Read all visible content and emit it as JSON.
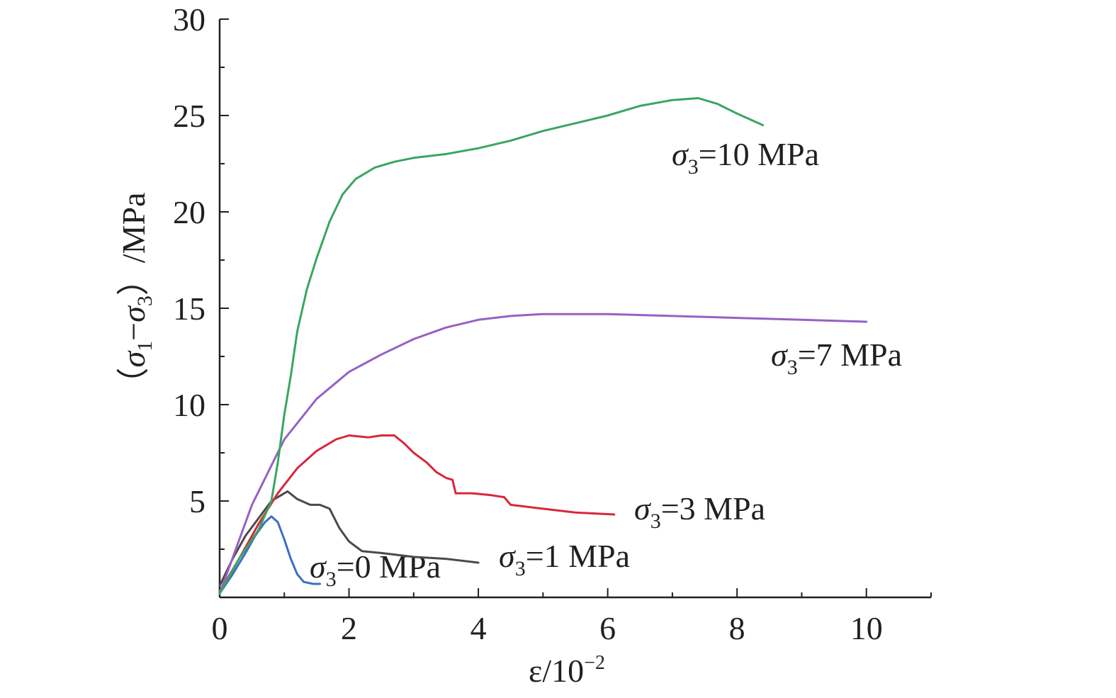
{
  "chart_data": {
    "type": "line",
    "xlabel": {
      "base": "ε/10",
      "sup": "−2"
    },
    "ylabel": {
      "open": "（",
      "s1": "σ",
      "s1sub": "1",
      "minus": "−",
      "s3": "σ",
      "s3sub": "3",
      "close": "）/MPa"
    },
    "xlim": [
      0,
      11
    ],
    "ylim": [
      0,
      30
    ],
    "xticks": [
      "0",
      "2",
      "4",
      "6",
      "8",
      "10"
    ],
    "yticks": [
      "5",
      "10",
      "15",
      "20",
      "25",
      "30"
    ],
    "grid": false,
    "series": [
      {
        "name": "σ3=0 MPa",
        "label": {
          "sym": "σ",
          "sub": "3",
          "rest": "=0 MPa"
        },
        "color": "#3a6fc4",
        "x": [
          0,
          0.2,
          0.4,
          0.55,
          0.7,
          0.8,
          0.9,
          1.0,
          1.1,
          1.2,
          1.3,
          1.45,
          1.55
        ],
        "y": [
          0.2,
          1.2,
          2.3,
          3.2,
          3.9,
          4.2,
          3.9,
          3.0,
          2.0,
          1.2,
          0.8,
          0.7,
          0.7
        ]
      },
      {
        "name": "σ3=1 MPa",
        "label": {
          "sym": "σ",
          "sub": "3",
          "rest": "=1 MPa"
        },
        "color": "#4a4a4a",
        "x": [
          0,
          0.2,
          0.4,
          0.6,
          0.8,
          0.95,
          1.05,
          1.2,
          1.4,
          1.55,
          1.7,
          1.85,
          2.0,
          2.2,
          2.5,
          3.0,
          3.5,
          4.0
        ],
        "y": [
          0.6,
          2.0,
          3.2,
          4.1,
          5.0,
          5.3,
          5.5,
          5.1,
          4.8,
          4.8,
          4.6,
          3.6,
          2.9,
          2.4,
          2.3,
          2.1,
          2.0,
          1.8
        ]
      },
      {
        "name": "σ3=3 MPa",
        "label": {
          "sym": "σ",
          "sub": "3",
          "rest": "=3 MPa"
        },
        "color": "#d9273c",
        "x": [
          0,
          0.3,
          0.6,
          0.9,
          1.2,
          1.5,
          1.8,
          2.0,
          2.3,
          2.5,
          2.7,
          2.85,
          3.0,
          3.2,
          3.35,
          3.5,
          3.6,
          3.65,
          3.9,
          4.2,
          4.4,
          4.5,
          5.0,
          5.5,
          6.1
        ],
        "y": [
          0.3,
          2.0,
          3.8,
          5.4,
          6.7,
          7.6,
          8.2,
          8.4,
          8.3,
          8.4,
          8.4,
          8.0,
          7.5,
          7.0,
          6.5,
          6.2,
          6.1,
          5.4,
          5.4,
          5.3,
          5.2,
          4.8,
          4.6,
          4.4,
          4.3
        ]
      },
      {
        "name": "σ3=7 MPa",
        "label": {
          "sym": "σ",
          "sub": "3",
          "rest": "=7 MPa"
        },
        "color": "#9661c4",
        "x": [
          0,
          0.5,
          1.0,
          1.5,
          2.0,
          2.5,
          3.0,
          3.5,
          4.0,
          4.5,
          5.0,
          5.5,
          6.0,
          7.0,
          8.0,
          9.0,
          10.0
        ],
        "y": [
          0.2,
          4.8,
          8.2,
          10.3,
          11.7,
          12.6,
          13.4,
          14.0,
          14.4,
          14.6,
          14.7,
          14.7,
          14.7,
          14.6,
          14.5,
          14.4,
          14.3
        ]
      },
      {
        "name": "σ3=10 MPa",
        "label": {
          "sym": "σ",
          "sub": "3",
          "rest": "=10 MPa"
        },
        "color": "#3aa561",
        "x": [
          0,
          0.3,
          0.6,
          0.8,
          0.9,
          1.0,
          1.1,
          1.2,
          1.35,
          1.5,
          1.7,
          1.9,
          2.1,
          2.4,
          2.7,
          3.0,
          3.5,
          4.0,
          4.5,
          5.0,
          5.5,
          6.0,
          6.5,
          7.0,
          7.4,
          7.7,
          8.0,
          8.4
        ],
        "y": [
          0.2,
          2.0,
          3.5,
          5.0,
          7.0,
          9.5,
          11.5,
          13.8,
          16.0,
          17.6,
          19.5,
          20.9,
          21.7,
          22.3,
          22.6,
          22.8,
          23.0,
          23.3,
          23.7,
          24.2,
          24.6,
          25.0,
          25.5,
          25.8,
          25.9,
          25.6,
          25.1,
          24.5
        ]
      }
    ]
  }
}
